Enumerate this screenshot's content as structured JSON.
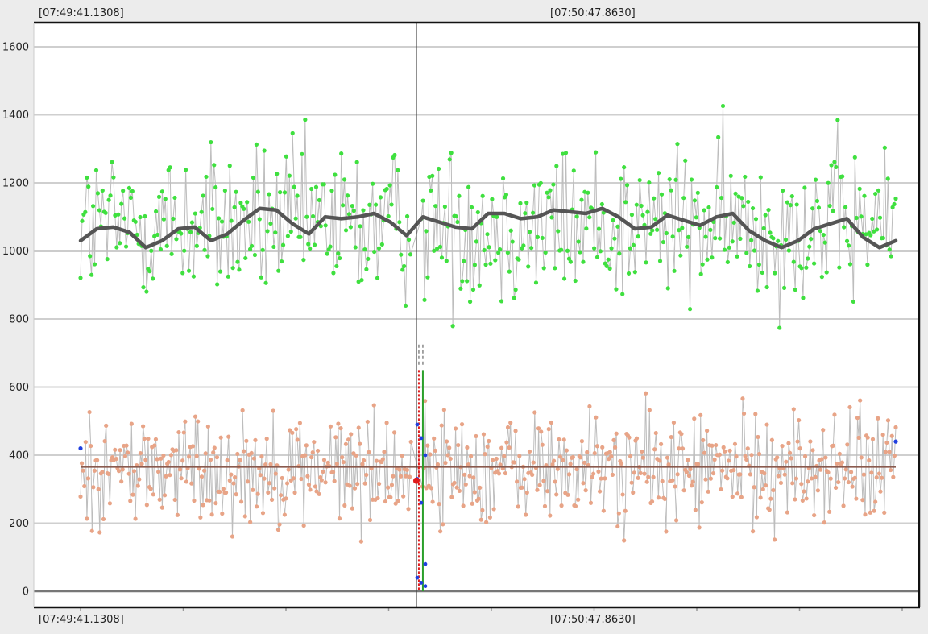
{
  "top_time_labels": [
    "[07:49:41.1308]",
    "[07:50:47.8630]"
  ],
  "bottom_time_labels": [
    "[07:49:41.1308]",
    "[07:50:47.8630]"
  ],
  "colors": {
    "background": "#ffffff",
    "grid": "#cfcfcf",
    "green_points": "#3fe03f",
    "salmon_points": "#e8a487",
    "connector": "#bdbdbd",
    "trend": "#555555",
    "baseline": "#8a5a4e",
    "blue_points": "#1f3fe0",
    "marker_red": "#e01b1b",
    "marker_green": "#2aa02a"
  },
  "chart_data": {
    "type": "scatter",
    "title": "",
    "xlabel": "",
    "ylabel": "",
    "ylim": [
      -20,
      1680
    ],
    "yticks": [
      0,
      200,
      400,
      600,
      800,
      1000,
      1200,
      1400,
      1600
    ],
    "xlim": [
      0,
      100
    ],
    "x_tick_labels": [
      {
        "x": 0,
        "label": "[07:49:41.1308]"
      },
      {
        "x": 62.9,
        "label": "[07:50:47.8630]"
      }
    ],
    "cursor_x": 41.2,
    "grid": true,
    "series": [
      {
        "kind": "upper-trend",
        "x": [
          0,
          2,
          4,
          6,
          8,
          10,
          12,
          14,
          16,
          18,
          20,
          22,
          24,
          26,
          28,
          30,
          32,
          34,
          36,
          38,
          40,
          42,
          44,
          46,
          48,
          50,
          52,
          54,
          56,
          58,
          60,
          62,
          64,
          66,
          68,
          70,
          72,
          74,
          76,
          78,
          80,
          82,
          84,
          86,
          88,
          90,
          92,
          94,
          96,
          98,
          100
        ],
        "values": [
          1030,
          1065,
          1070,
          1055,
          1010,
          1030,
          1065,
          1070,
          1030,
          1050,
          1090,
          1125,
          1120,
          1080,
          1050,
          1100,
          1095,
          1100,
          1110,
          1085,
          1045,
          1100,
          1085,
          1070,
          1065,
          1110,
          1110,
          1095,
          1100,
          1120,
          1115,
          1110,
          1125,
          1100,
          1065,
          1070,
          1105,
          1090,
          1075,
          1100,
          1110,
          1060,
          1030,
          1010,
          1030,
          1065,
          1080,
          1095,
          1040,
          1010,
          1030
        ]
      },
      {
        "kind": "lower-baseline",
        "x": [
          0,
          100
        ],
        "values": [
          365,
          365
        ]
      },
      {
        "kind": "upper-scatter",
        "center": 1075,
        "spread": 210,
        "count": 520
      },
      {
        "kind": "lower-scatter",
        "center": 360,
        "spread": 150,
        "count": 640
      }
    ],
    "cursor_markers": {
      "red_point": {
        "x": 41.2,
        "y": 325
      },
      "blue_points_y": [
        490,
        450,
        400,
        330,
        260,
        80,
        40,
        25,
        15
      ],
      "blue_end_points": [
        {
          "x": 0,
          "y": 420
        },
        {
          "x": 100,
          "y": 440
        }
      ]
    }
  }
}
